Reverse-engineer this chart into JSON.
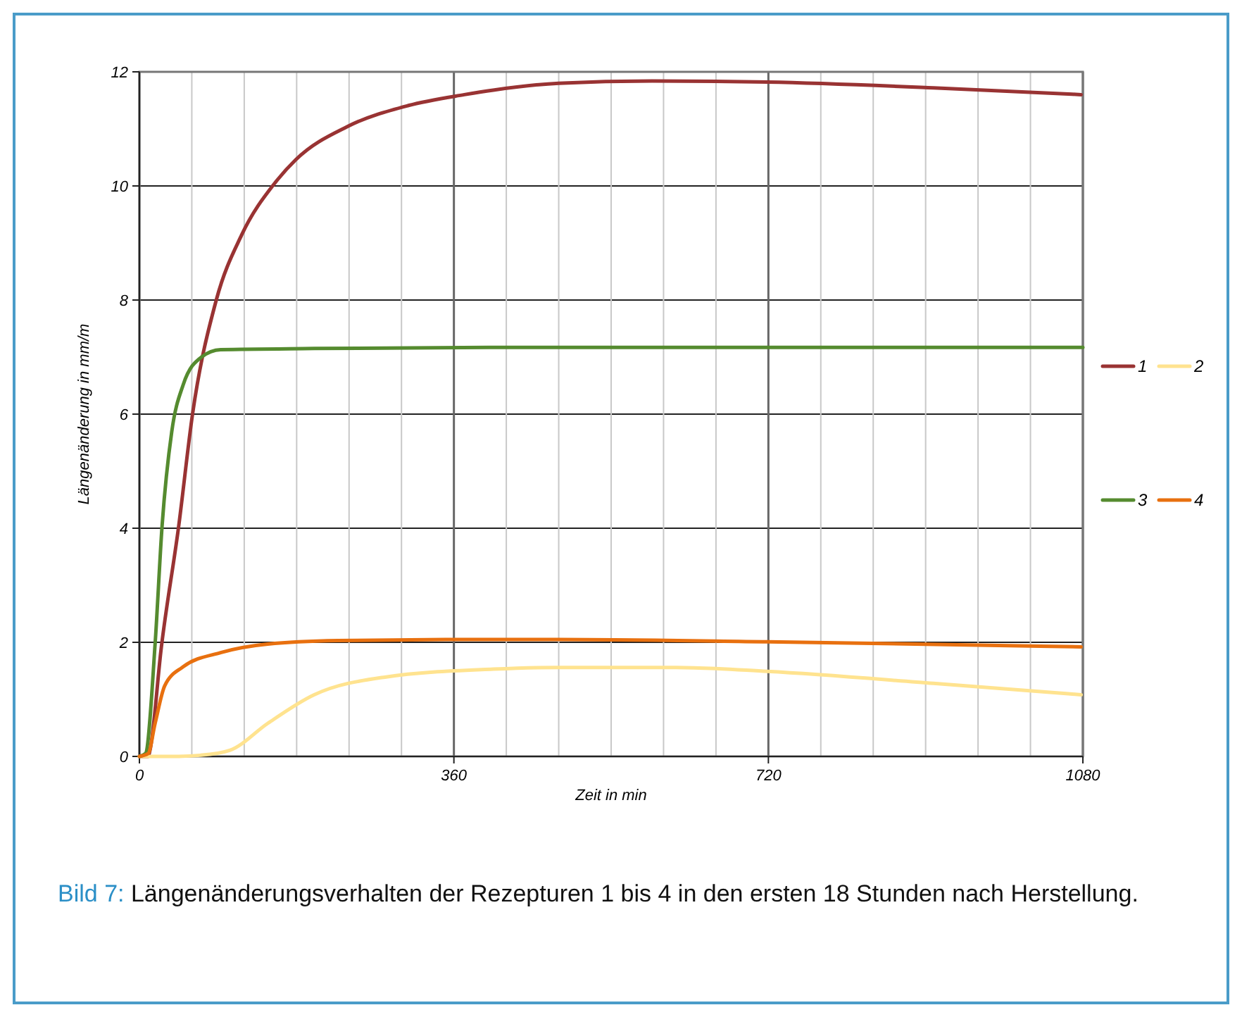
{
  "chart_data": {
    "type": "line",
    "xlabel": "Zeit in min",
    "ylabel": "Längenänderung in mm/m",
    "xlim": [
      0,
      1080
    ],
    "ylim": [
      0,
      12
    ],
    "xticks": [
      0,
      {
        "value": 60,
        "label": null
      },
      {
        "value": 120,
        "label": null
      },
      {
        "value": 180,
        "label": null
      },
      {
        "value": 240,
        "label": null
      },
      {
        "value": 300,
        "label": null
      },
      360,
      {
        "value": 420,
        "label": null
      },
      {
        "value": 480,
        "label": null
      },
      {
        "value": 540,
        "label": null
      },
      {
        "value": 600,
        "label": null
      },
      {
        "value": 660,
        "label": null
      },
      720,
      {
        "value": 780,
        "label": null
      },
      {
        "value": 840,
        "label": null
      },
      {
        "value": 900,
        "label": null
      },
      {
        "value": 960,
        "label": null
      },
      {
        "value": 1020,
        "label": null
      },
      1080
    ],
    "yticks": [
      0,
      2,
      4,
      6,
      8,
      10,
      12
    ],
    "grid": true,
    "legend": "right",
    "marker": "none",
    "line_style": "solid",
    "series": [
      {
        "name": "1",
        "color": "#993333",
        "x": [
          0,
          10,
          12,
          25,
          45,
          61,
          88,
          117,
          155,
          179,
          238,
          308,
          372,
          405,
          480,
          587,
          719,
          909,
          1078
        ],
        "values": [
          0,
          0,
          0.1,
          1.9,
          4.04,
          6.02,
          8.0,
          9.14,
          10.05,
          10.46,
          11.04,
          11.41,
          11.6,
          11.68,
          11.8,
          11.84,
          11.82,
          11.72,
          11.6
        ]
      },
      {
        "name": "2",
        "color": "#ffe38f",
        "x": [
          0,
          40,
          70,
          104,
          147,
          200,
          281,
          405,
          480,
          614,
          719,
          909,
          1078
        ],
        "values": [
          0,
          0,
          0.02,
          0.11,
          0.58,
          1.08,
          1.39,
          1.53,
          1.56,
          1.56,
          1.49,
          1.28,
          1.08
        ]
      },
      {
        "name": "3",
        "color": "#558b2f",
        "x": [
          0,
          7,
          18,
          26,
          37,
          50,
          71,
          93,
          200,
          400,
          1080
        ],
        "values": [
          0,
          0.05,
          1.98,
          4.05,
          5.69,
          6.51,
          7.0,
          7.13,
          7.15,
          7.17,
          7.17
        ]
      },
      {
        "name": "4",
        "color": "#e8700f",
        "x": [
          0,
          10,
          18,
          29,
          50,
          93,
          147,
          227,
          372,
          480,
          719,
          1078
        ],
        "values": [
          0,
          0.05,
          0.58,
          1.24,
          1.57,
          1.82,
          1.97,
          2.03,
          2.05,
          2.05,
          2.01,
          1.92
        ]
      }
    ],
    "annotations": [
      "Bild 7: Längenänderungsverhalten der Rezepturen 1 bis 4 in den ersten 18 Stunden nach Herstellung."
    ]
  }
}
